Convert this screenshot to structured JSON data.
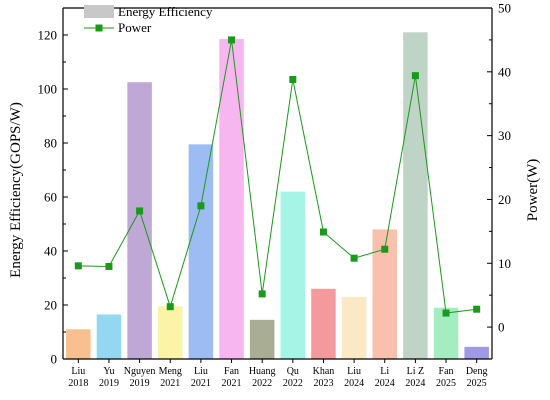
{
  "chart_data": {
    "type": "bar+line",
    "categories": [
      [
        "Liu",
        "2018"
      ],
      [
        "Yu",
        "2019"
      ],
      [
        "Nguyen",
        "2019"
      ],
      [
        "Meng",
        "2021"
      ],
      [
        "Liu",
        "2021"
      ],
      [
        "Fan",
        "2021"
      ],
      [
        "Huang",
        "2022"
      ],
      [
        "Qu",
        "2022"
      ],
      [
        "Khan",
        "2023"
      ],
      [
        "Liu",
        "2024"
      ],
      [
        "Li",
        "2024"
      ],
      [
        "Li Z",
        "2024"
      ],
      [
        "Fan",
        "2025"
      ],
      [
        "Deng",
        "2025"
      ]
    ],
    "bar_colors": [
      "#f9c08f",
      "#93d7f3",
      "#bfa7d6",
      "#fbf3a5",
      "#9dbcf3",
      "#f8b6f1",
      "#a9ad94",
      "#a5f4e6",
      "#f49a9c",
      "#fbe9c6",
      "#f8c0ad",
      "#bfd3c7",
      "#a4edc0",
      "#9f99e6"
    ],
    "series": [
      {
        "name": "Energy Efficiency",
        "axis": "left",
        "kind": "bar",
        "values": [
          11,
          16.5,
          102.5,
          19.5,
          79.5,
          118.5,
          14.5,
          62,
          26,
          23,
          48,
          121,
          19,
          4.5
        ]
      },
      {
        "name": "Power",
        "axis": "right",
        "kind": "line",
        "color": "#1a9a1a",
        "values": [
          9.6,
          9.5,
          18.2,
          3.2,
          19,
          45,
          5.2,
          38.8,
          14.9,
          10.8,
          12.2,
          39.4,
          2.2,
          2.8
        ]
      }
    ],
    "ylabel": "Energy Efficiency(GOPS/W)",
    "ylabel_right": "Power(W)",
    "ylim": [
      0,
      130
    ],
    "ylim_right": [
      -5,
      50
    ],
    "yticks": [
      "0",
      "20",
      "40",
      "60",
      "80",
      "100",
      "120"
    ],
    "yticks_right": [
      "0",
      "10",
      "20",
      "30",
      "40",
      "50"
    ],
    "legend": {
      "placement": "top-left",
      "entries": [
        "Energy Efficiency",
        "Power"
      ]
    },
    "grid": false
  }
}
